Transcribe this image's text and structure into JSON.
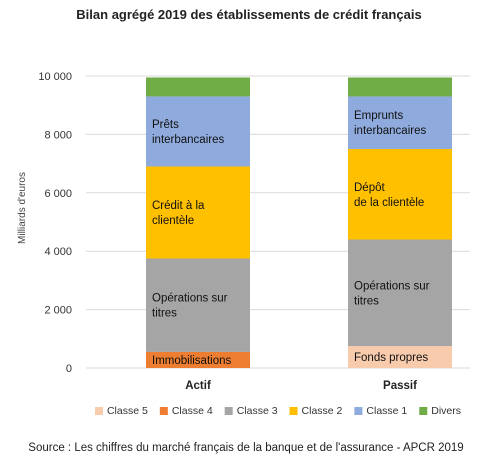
{
  "chart_data": {
    "type": "bar",
    "stacked": true,
    "title": "Bilan agrégé 2019 des établissements de crédit français",
    "ylabel": "Milliards d'euros",
    "xlabel": "",
    "ylim": [
      0,
      10000
    ],
    "yticks": [
      0,
      2000,
      4000,
      6000,
      8000,
      10000
    ],
    "ytick_labels": [
      "0",
      "2 000",
      "4 000",
      "6 000",
      "8 000",
      "10 000"
    ],
    "grid": true,
    "legend_position": "bottom",
    "categories": [
      "Actif",
      "Passif"
    ],
    "series": [
      {
        "name": "Classe 5",
        "color": "#f8cbad",
        "values": [
          0,
          750
        ]
      },
      {
        "name": "Classe 4",
        "color": "#ed7d31",
        "values": [
          550,
          0
        ]
      },
      {
        "name": "Classe 3",
        "color": "#a5a5a5",
        "values": [
          3200,
          3650
        ]
      },
      {
        "name": "Classe 2",
        "color": "#ffc000",
        "values": [
          3150,
          3100
        ]
      },
      {
        "name": "Classe 1",
        "color": "#8faadc",
        "values": [
          2400,
          1800
        ]
      },
      {
        "name": "Divers",
        "color": "#70ad47",
        "values": [
          650,
          650
        ]
      }
    ],
    "annotations": [
      {
        "category": "Actif",
        "series": "Classe 4",
        "lines": [
          "Immobilisations"
        ]
      },
      {
        "category": "Actif",
        "series": "Classe 3",
        "lines": [
          "Opérations sur",
          "titres"
        ]
      },
      {
        "category": "Actif",
        "series": "Classe 2",
        "lines": [
          "Crédit à la",
          "clientèle"
        ]
      },
      {
        "category": "Actif",
        "series": "Classe 1",
        "lines": [
          "Prêts",
          "interbancaires"
        ]
      },
      {
        "category": "Passif",
        "series": "Classe 5",
        "lines": [
          "Fonds propres"
        ]
      },
      {
        "category": "Passif",
        "series": "Classe 3",
        "lines": [
          "Opérations sur",
          "titres"
        ]
      },
      {
        "category": "Passif",
        "series": "Classe 2",
        "lines": [
          "Dépôt",
          "de la clientèle"
        ]
      },
      {
        "category": "Passif",
        "series": "Classe 1",
        "lines": [
          "Emprunts",
          "interbancaires"
        ]
      }
    ],
    "source": "Source : Les chiffres du marché français de la banque et de l'assurance - APCR 2019"
  }
}
